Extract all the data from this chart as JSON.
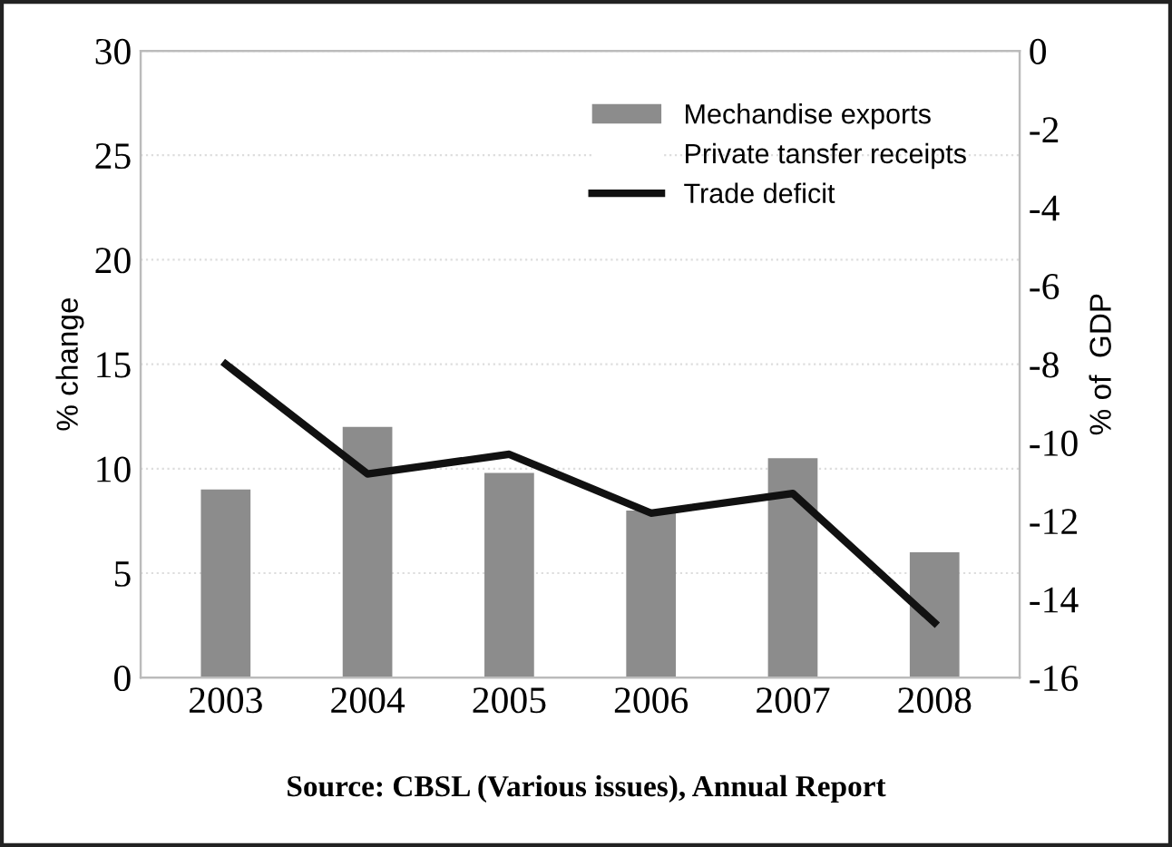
{
  "chart_data": {
    "type": "bar",
    "categories": [
      "2003",
      "2004",
      "2005",
      "2006",
      "2007",
      "2008"
    ],
    "series": [
      {
        "name": "Mechandise exports",
        "color": "#8c8c8c",
        "values": [
          9,
          12,
          9.8,
          8,
          10.5,
          6
        ]
      },
      {
        "name": "Private tansfer receipts",
        "color": "#ffffff",
        "values": [
          null,
          null,
          null,
          null,
          null,
          null
        ]
      },
      {
        "name": "Trade deficit",
        "type": "line",
        "axis": "y2",
        "color": "#111111",
        "values": [
          -8,
          -10.8,
          -10.3,
          -11.8,
          -11.3,
          -14.6
        ]
      }
    ],
    "ylabel": "% change",
    "y2label": "% of  GDP",
    "ylim": [
      0,
      30
    ],
    "yticks": [
      0,
      5,
      10,
      15,
      20,
      25,
      30
    ],
    "y2lim": [
      -16,
      0
    ],
    "y2ticks": [
      -16,
      -14,
      -12,
      -10,
      -8,
      -6,
      -4,
      -2,
      0
    ],
    "grid": "y",
    "legend": "top right",
    "marker": "none",
    "line_style": "solid",
    "annotations": [
      "Source: CBSL (Various issues), Annual Report"
    ]
  }
}
